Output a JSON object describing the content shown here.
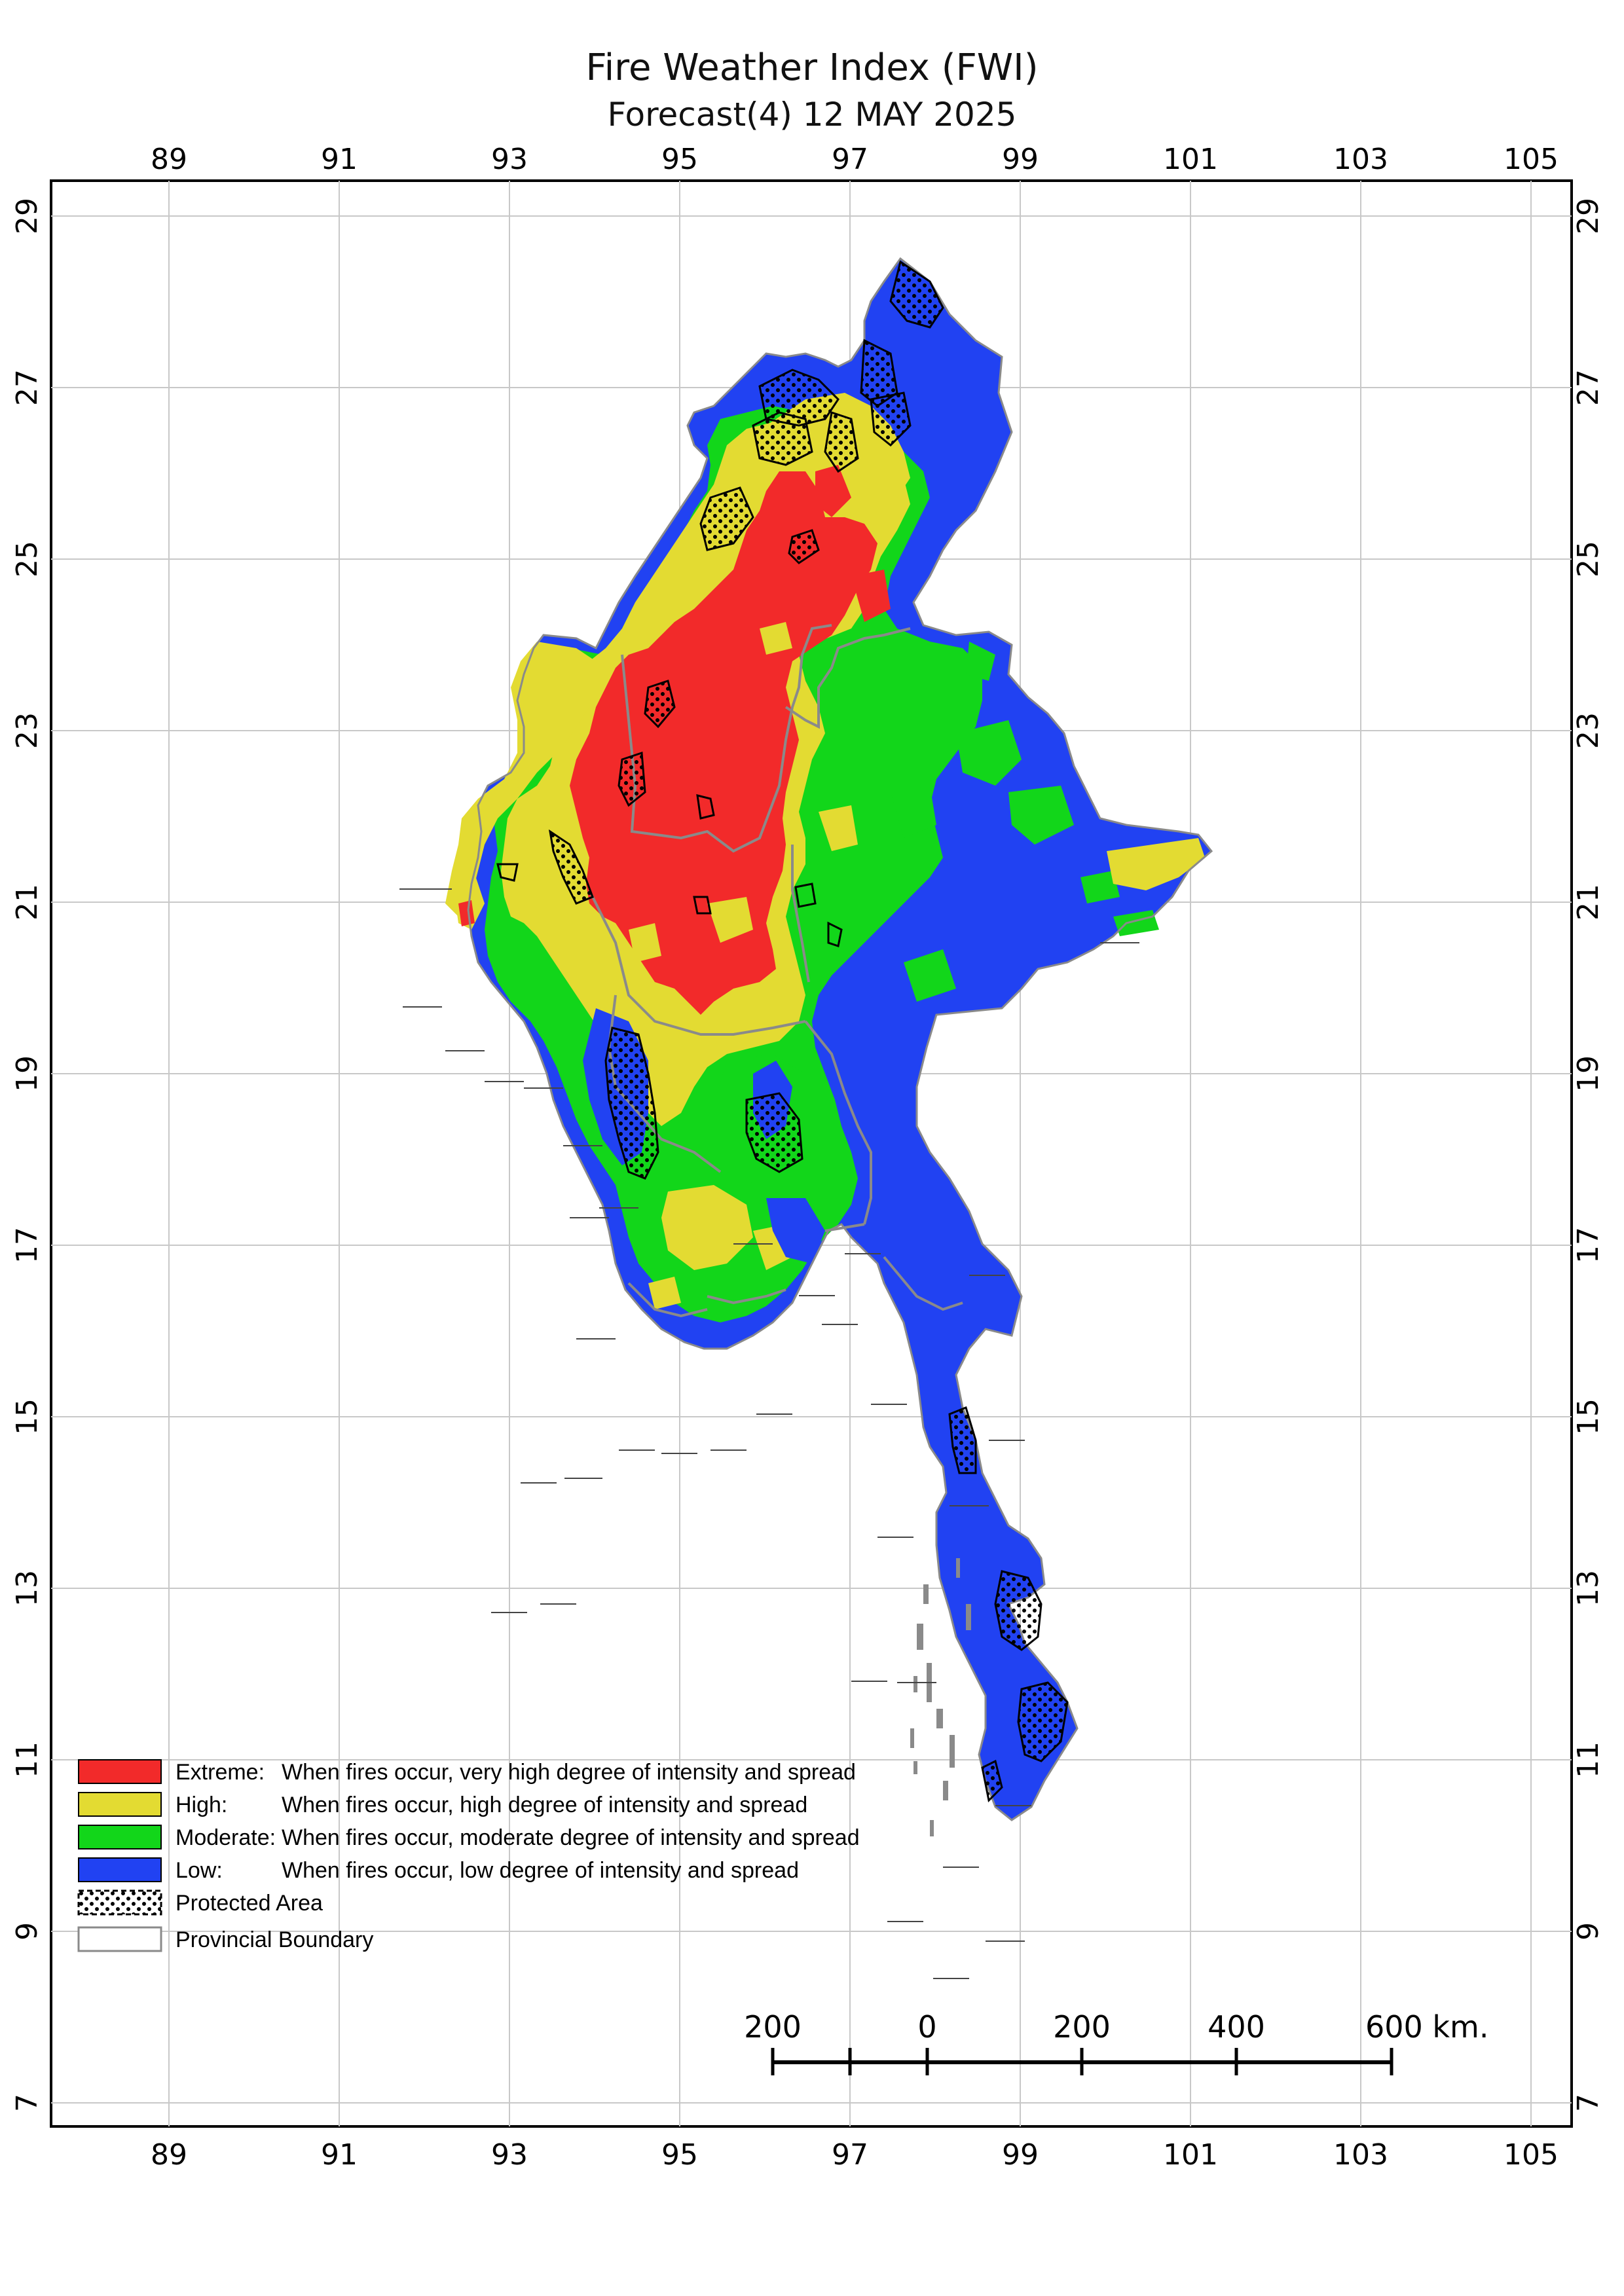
{
  "title": "Fire Weather Index (FWI)",
  "subtitle": "Forecast(4) 12 MAY 2025",
  "axes": {
    "longitude_ticks": [
      "89",
      "91",
      "93",
      "95",
      "97",
      "99",
      "101",
      "103",
      "105"
    ],
    "latitude_ticks": [
      "29",
      "27",
      "25",
      "23",
      "21",
      "19",
      "17",
      "15",
      "13",
      "11",
      "9",
      "7"
    ]
  },
  "legend": {
    "items": [
      {
        "label": "Extreme:",
        "desc": "When fires occur, very high degree of intensity and spread",
        "color": "#f22a2a"
      },
      {
        "label": "High:",
        "desc": "When fires occur, high degree of intensity and spread",
        "color": "#e3db32"
      },
      {
        "label": "Moderate:",
        "desc": "When fires occur, moderate degree of intensity and spread",
        "color": "#12d61a"
      },
      {
        "label": "Low:",
        "desc": "When fires occur, low degree of intensity and spread",
        "color": "#2142f2"
      }
    ],
    "protected_area": "Protected Area",
    "provincial_boundary": "Provincial Boundary"
  },
  "scale_bar": {
    "labels": [
      "200",
      "0",
      "200",
      "400",
      "600 km."
    ]
  },
  "colors": {
    "extreme": "#f22a2a",
    "high": "#e3db32",
    "moderate": "#12d61a",
    "low": "#2142f2",
    "boundary": "#8a8a8a",
    "grid": "#c8c8c8"
  }
}
